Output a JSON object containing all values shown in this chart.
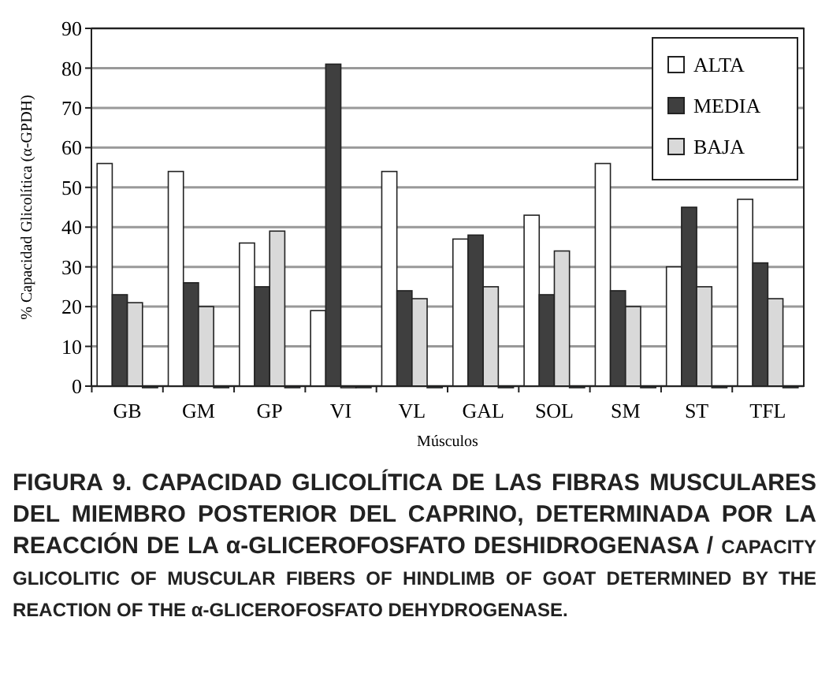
{
  "chart_data": {
    "type": "bar",
    "xlabel": "Músculos",
    "ylabel": "% Capacidad Glicolítica (α-GPDH)",
    "categories": [
      "GB",
      "GM",
      "GP",
      "VI",
      "VL",
      "GAL",
      "SOL",
      "SM",
      "ST",
      "TFL"
    ],
    "series": [
      {
        "name": "ALTA",
        "color": "#ffffff",
        "values": [
          56,
          54,
          36,
          19,
          54,
          37,
          43,
          56,
          30,
          47
        ]
      },
      {
        "name": "MEDIA",
        "color": "#3f3f3f",
        "values": [
          23,
          26,
          25,
          81,
          24,
          38,
          23,
          24,
          45,
          31
        ]
      },
      {
        "name": "BAJA",
        "color": "#d9d9d9",
        "values": [
          21,
          20,
          39,
          0,
          22,
          25,
          34,
          20,
          25,
          22
        ]
      },
      {
        "color": "#44545a",
        "values": [
          0,
          0,
          0,
          0,
          0,
          0,
          0,
          0,
          0,
          0
        ]
      }
    ],
    "ylim": [
      0,
      90
    ],
    "yticks": [
      0,
      10,
      20,
      30,
      40,
      50,
      60,
      70,
      80,
      90
    ],
    "grid": "y",
    "legend": "top right",
    "annotations": [
      "FIGURA 9. CAPACIDAD GLICOLÍTICA DE LAS FIBRAS MUSCULARES DEL MIEMBRO POSTERIOR DEL CAPRINO, DETERMINADA POR LA REACCIÓN DE LA α-GLICEROFOSFATO DESHIDROGENASA /",
      "CAPACITY GLICOLITIC OF MUSCULAR FIBERS OF HINDLIMB OF GOAT DETERMINED BY THE REACTION OF THE α-GLICEROFOSFATO DEHYDROGENASE."
    ]
  }
}
